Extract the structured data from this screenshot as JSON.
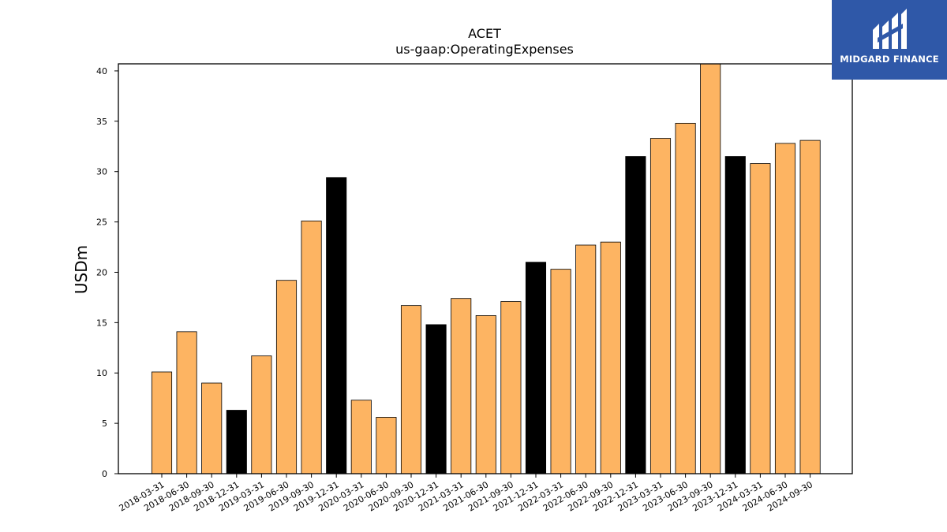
{
  "chart_data": {
    "type": "bar",
    "title": "ACET",
    "subtitle": "us-gaap:OperatingExpenses",
    "xlabel": "",
    "ylabel": "USDm",
    "ylim": [
      0,
      40.7
    ],
    "yticks": [
      0,
      5,
      10,
      15,
      20,
      25,
      30,
      35,
      40
    ],
    "grid": false,
    "categories": [
      "2018-03-31",
      "2018-06-30",
      "2018-09-30",
      "2018-12-31",
      "2019-03-31",
      "2019-06-30",
      "2019-09-30",
      "2019-12-31",
      "2020-03-31",
      "2020-06-30",
      "2020-09-30",
      "2020-12-31",
      "2021-03-31",
      "2021-06-30",
      "2021-09-30",
      "2021-12-31",
      "2022-03-31",
      "2022-06-30",
      "2022-09-30",
      "2022-12-31",
      "2023-03-31",
      "2023-06-30",
      "2023-09-30",
      "2023-12-31",
      "2024-03-31",
      "2024-06-30",
      "2024-09-30"
    ],
    "values": [
      10.1,
      14.1,
      9.0,
      6.3,
      11.7,
      19.2,
      25.1,
      29.4,
      7.3,
      5.6,
      16.7,
      14.8,
      17.4,
      15.7,
      17.1,
      21.0,
      20.3,
      22.7,
      23.0,
      31.5,
      33.3,
      34.8,
      40.7,
      31.5,
      30.8,
      32.8,
      33.1
    ],
    "bar_colors": [
      "#fdb462",
      "#fdb462",
      "#fdb462",
      "#000000",
      "#fdb462",
      "#fdb462",
      "#fdb462",
      "#000000",
      "#fdb462",
      "#fdb462",
      "#fdb462",
      "#000000",
      "#fdb462",
      "#fdb462",
      "#fdb462",
      "#000000",
      "#fdb462",
      "#fdb462",
      "#fdb462",
      "#000000",
      "#fdb462",
      "#fdb462",
      "#fdb462",
      "#000000",
      "#fdb462",
      "#fdb462",
      "#fdb462"
    ]
  },
  "logo": {
    "text": "MIDGARD FINANCE",
    "background": "#2f58a8"
  }
}
